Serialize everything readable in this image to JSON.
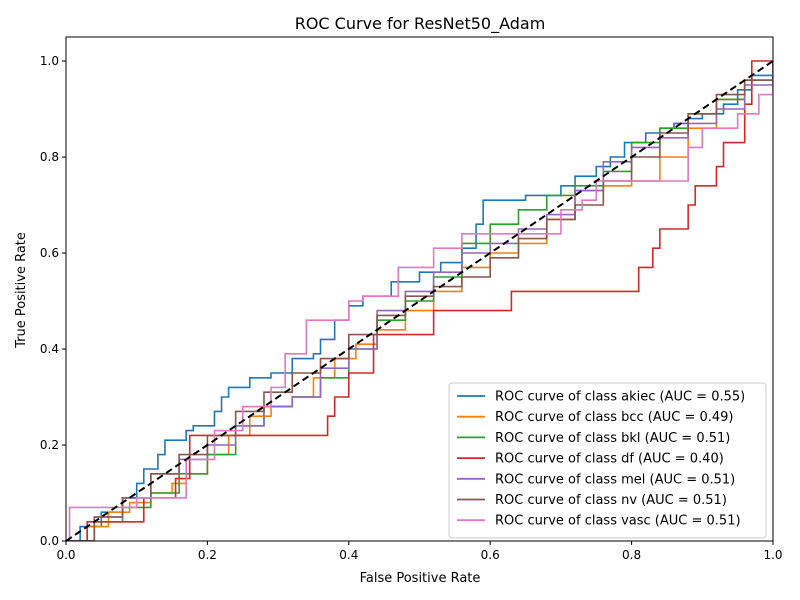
{
  "chart_data": {
    "type": "line",
    "title": "ROC Curve for ResNet50_Adam",
    "xlabel": "False Positive Rate",
    "ylabel": "True Positive Rate",
    "xlim": [
      0.0,
      1.0
    ],
    "ylim": [
      0.0,
      1.05
    ],
    "xticks": [
      0.0,
      0.2,
      0.4,
      0.6,
      0.8,
      1.0
    ],
    "xtick_labels": [
      "0.0",
      "0.2",
      "0.4",
      "0.6",
      "0.8",
      "1.0"
    ],
    "yticks": [
      0.0,
      0.2,
      0.4,
      0.6,
      0.8,
      1.0
    ],
    "ytick_labels": [
      "0.0",
      "0.2",
      "0.4",
      "0.6",
      "0.8",
      "1.0"
    ],
    "grid": false,
    "legend_position": "lower-right",
    "diagonal": {
      "x": [
        0,
        1
      ],
      "y": [
        0,
        1
      ],
      "color": "#000000",
      "style": "dashed"
    },
    "series": [
      {
        "name": "ROC curve of class akiec (AUC = 0.55)",
        "color": "#1f77b4",
        "x": [
          0,
          0.02,
          0.05,
          0.08,
          0.1,
          0.11,
          0.13,
          0.14,
          0.17,
          0.18,
          0.21,
          0.22,
          0.23,
          0.26,
          0.29,
          0.32,
          0.35,
          0.36,
          0.38,
          0.4,
          0.42,
          0.46,
          0.5,
          0.53,
          0.56,
          0.58,
          0.59,
          0.62,
          0.65,
          0.7,
          0.72,
          0.75,
          0.77,
          0.79,
          0.82,
          0.84,
          0.86,
          0.88,
          0.9,
          0.93,
          0.95,
          0.97,
          1.0
        ],
        "y": [
          0,
          0.03,
          0.06,
          0.09,
          0.12,
          0.15,
          0.18,
          0.21,
          0.23,
          0.24,
          0.27,
          0.3,
          0.32,
          0.34,
          0.35,
          0.38,
          0.39,
          0.42,
          0.46,
          0.49,
          0.51,
          0.54,
          0.56,
          0.58,
          0.61,
          0.66,
          0.71,
          0.71,
          0.72,
          0.74,
          0.76,
          0.78,
          0.8,
          0.83,
          0.85,
          0.86,
          0.87,
          0.88,
          0.89,
          0.91,
          0.94,
          0.97,
          1.0
        ]
      },
      {
        "name": "ROC curve of class bcc (AUC = 0.49)",
        "color": "#ff7f0e",
        "x": [
          0,
          0.03,
          0.06,
          0.09,
          0.12,
          0.15,
          0.17,
          0.2,
          0.23,
          0.26,
          0.29,
          0.32,
          0.35,
          0.38,
          0.41,
          0.44,
          0.48,
          0.52,
          0.56,
          0.6,
          0.64,
          0.68,
          0.72,
          0.76,
          0.8,
          0.84,
          0.88,
          0.92,
          0.96,
          1.0
        ],
        "y": [
          0,
          0.03,
          0.06,
          0.08,
          0.1,
          0.12,
          0.14,
          0.18,
          0.22,
          0.26,
          0.28,
          0.3,
          0.34,
          0.38,
          0.41,
          0.44,
          0.48,
          0.52,
          0.57,
          0.6,
          0.62,
          0.67,
          0.73,
          0.74,
          0.75,
          0.8,
          0.86,
          0.92,
          0.96,
          1.0
        ]
      },
      {
        "name": "ROC curve of class bkl (AUC = 0.51)",
        "color": "#2ca02c",
        "x": [
          0,
          0.04,
          0.08,
          0.12,
          0.16,
          0.2,
          0.24,
          0.28,
          0.32,
          0.36,
          0.4,
          0.44,
          0.48,
          0.52,
          0.56,
          0.6,
          0.64,
          0.68,
          0.72,
          0.76,
          0.8,
          0.84,
          0.88,
          0.92,
          0.96,
          1.0
        ],
        "y": [
          0,
          0.04,
          0.07,
          0.1,
          0.14,
          0.18,
          0.24,
          0.28,
          0.3,
          0.34,
          0.4,
          0.46,
          0.5,
          0.55,
          0.62,
          0.66,
          0.69,
          0.72,
          0.74,
          0.77,
          0.83,
          0.86,
          0.89,
          0.92,
          0.96,
          1.0
        ]
      },
      {
        "name": "ROC curve of class df (AUC = 0.40)",
        "color": "#d62728",
        "x": [
          0,
          0.03,
          0.11,
          0.155,
          0.175,
          0.37,
          0.38,
          0.4,
          0.435,
          0.52,
          0.63,
          0.81,
          0.83,
          0.84,
          0.88,
          0.89,
          0.92,
          0.93,
          0.96,
          0.97,
          1.0
        ],
        "y": [
          0,
          0.04,
          0.09,
          0.13,
          0.22,
          0.26,
          0.3,
          0.35,
          0.43,
          0.48,
          0.52,
          0.57,
          0.61,
          0.65,
          0.7,
          0.74,
          0.78,
          0.83,
          0.91,
          1.0,
          1.0
        ]
      },
      {
        "name": "ROC curve of class mel (AUC = 0.51)",
        "color": "#9467bd",
        "x": [
          0,
          0.04,
          0.08,
          0.12,
          0.16,
          0.2,
          0.24,
          0.28,
          0.32,
          0.36,
          0.4,
          0.44,
          0.48,
          0.52,
          0.56,
          0.6,
          0.64,
          0.68,
          0.72,
          0.76,
          0.8,
          0.84,
          0.88,
          0.92,
          0.96,
          1.0
        ],
        "y": [
          0,
          0.05,
          0.09,
          0.14,
          0.17,
          0.2,
          0.24,
          0.28,
          0.3,
          0.36,
          0.4,
          0.48,
          0.52,
          0.56,
          0.6,
          0.62,
          0.65,
          0.68,
          0.73,
          0.79,
          0.82,
          0.84,
          0.87,
          0.9,
          0.95,
          1.0
        ]
      },
      {
        "name": "ROC curve of class nv (AUC = 0.51)",
        "color": "#8c564b",
        "x": [
          0,
          0.04,
          0.08,
          0.12,
          0.16,
          0.2,
          0.24,
          0.28,
          0.32,
          0.36,
          0.4,
          0.44,
          0.48,
          0.52,
          0.56,
          0.6,
          0.64,
          0.68,
          0.72,
          0.76,
          0.8,
          0.84,
          0.88,
          0.92,
          0.96,
          1.0
        ],
        "y": [
          0,
          0.05,
          0.09,
          0.14,
          0.18,
          0.22,
          0.27,
          0.31,
          0.35,
          0.38,
          0.43,
          0.47,
          0.51,
          0.53,
          0.55,
          0.59,
          0.63,
          0.67,
          0.7,
          0.75,
          0.8,
          0.85,
          0.89,
          0.93,
          0.96,
          1.0
        ]
      },
      {
        "name": "ROC curve of class vasc (AUC = 0.51)",
        "color": "#e377c2",
        "x": [
          0,
          0.005,
          0.1,
          0.17,
          0.21,
          0.25,
          0.29,
          0.31,
          0.34,
          0.4,
          0.42,
          0.47,
          0.52,
          0.56,
          0.6,
          0.65,
          0.7,
          0.73,
          0.75,
          0.78,
          0.81,
          0.85,
          0.88,
          0.9,
          0.94,
          0.95,
          0.98,
          1.0
        ],
        "y": [
          0,
          0.07,
          0.09,
          0.17,
          0.23,
          0.28,
          0.32,
          0.39,
          0.46,
          0.5,
          0.51,
          0.57,
          0.61,
          0.64,
          0.64,
          0.64,
          0.69,
          0.71,
          0.75,
          0.75,
          0.75,
          0.75,
          0.82,
          0.86,
          0.86,
          0.89,
          0.93,
          1.0
        ]
      }
    ]
  }
}
